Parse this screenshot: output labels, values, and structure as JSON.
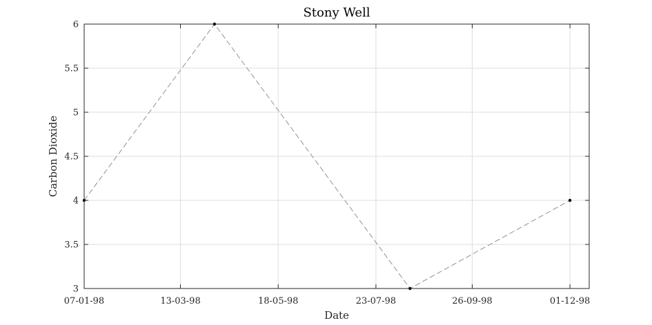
{
  "chart_data": {
    "type": "line",
    "title": "Stony Well",
    "xlabel": "Date",
    "ylabel": "Carbon Dioxide",
    "x_axis": {
      "kind": "date",
      "format": "DD-MM-YY",
      "range": [
        "1998-01-07",
        "1998-12-14"
      ],
      "tick_labels": [
        "07-01-98",
        "13-03-98",
        "18-05-98",
        "23-07-98",
        "26-09-98",
        "01-12-98"
      ]
    },
    "ylim": [
      3,
      6
    ],
    "y_ticks": [
      3,
      3.5,
      4,
      4.5,
      5,
      5.5,
      6
    ],
    "y_tick_labels": [
      "3",
      "3.5",
      "4",
      "4.5",
      "5",
      "5.5",
      "6"
    ],
    "grid": true,
    "series": [
      {
        "name": "Carbon Dioxide",
        "line_style": "dashed",
        "color": "#9a9a9a",
        "marker_color": "#000000",
        "points": [
          {
            "date": "1998-01-07",
            "value": 4
          },
          {
            "date": "1998-04-05",
            "value": 6
          },
          {
            "date": "1998-08-15",
            "value": 3
          },
          {
            "date": "1998-12-01",
            "value": 4
          }
        ]
      }
    ]
  }
}
